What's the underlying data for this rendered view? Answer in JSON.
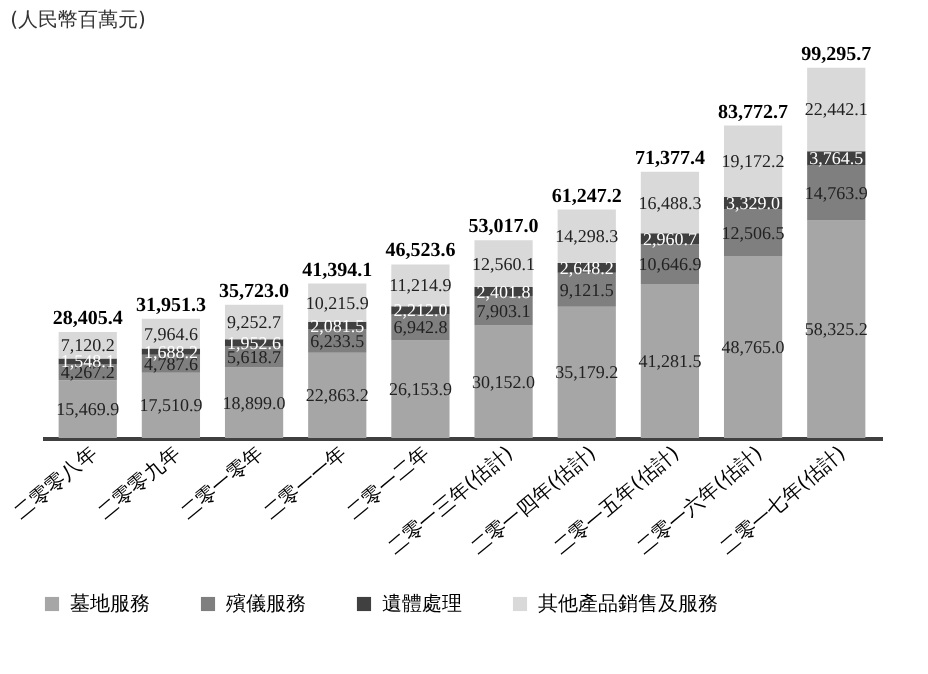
{
  "chart_data": {
    "type": "bar",
    "stacked": true,
    "ylabel": "(人民幣百萬元)",
    "categories": [
      "二零零八年",
      "二零零九年",
      "二零一零年",
      "二零一一年",
      "二零一二年",
      "二零一三年(估計)",
      "二零一四年(估計)",
      "二零一五年(估計)",
      "二零一六年(估計)",
      "二零一七年(估計)"
    ],
    "series": [
      {
        "name": "墓地服務",
        "color": "#a6a6a6",
        "values": [
          15469.9,
          17510.9,
          18899.0,
          22863.2,
          26153.9,
          30152.0,
          35179.2,
          41281.5,
          48765.0,
          58325.2
        ],
        "value_labels": [
          "15,469.9",
          "17,510.9",
          "18,899.0",
          "22,863.2",
          "26,153.9",
          "30,152.0",
          "35,179.2",
          "41,281.5",
          "48,765.0",
          "58,325.2"
        ]
      },
      {
        "name": "殯儀服務",
        "color": "#7f7f7f",
        "values": [
          4267.2,
          4787.6,
          5618.7,
          6233.5,
          6942.8,
          7903.1,
          9121.5,
          10646.9,
          12506.5,
          14763.9
        ],
        "value_labels": [
          "4,267.2",
          "4,787.6",
          "5,618.7",
          "6,233.5",
          "6,942.8",
          "7,903.1",
          "9,121.5",
          "10,646.9",
          "12,506.5",
          "14,763.9"
        ]
      },
      {
        "name": "遺體處理",
        "color": "#404040",
        "values": [
          1548.1,
          1688.2,
          1952.6,
          2081.5,
          2212.0,
          2401.8,
          2648.2,
          2960.7,
          3329.0,
          3764.5
        ],
        "value_labels": [
          "1,548.1",
          "1,688.2",
          "1,952.6",
          "2,081.5",
          "2,212.0",
          "2,401.8",
          "2,648.2",
          "2,960.7",
          "3,329.0",
          "3,764.5"
        ]
      },
      {
        "name": "其他產品銷售及服務",
        "color": "#d9d9d9",
        "values": [
          7120.2,
          7964.6,
          9252.7,
          10215.9,
          11214.9,
          12560.1,
          14298.3,
          16488.3,
          19172.2,
          22442.1
        ],
        "value_labels": [
          "7,120.2",
          "7,964.6",
          "9,252.7",
          "10,215.9",
          "11,214.9",
          "12,560.1",
          "14,298.3",
          "16,488.3",
          "19,172.2",
          "22,442.1"
        ]
      }
    ],
    "totals": [
      "28,405.4",
      "31,951.3",
      "35,723.0",
      "41,394.1",
      "46,523.6",
      "53,017.0",
      "61,247.2",
      "71,377.4",
      "83,772.7",
      "99,295.7"
    ],
    "legend": "bottom",
    "tick_labels": "x"
  }
}
